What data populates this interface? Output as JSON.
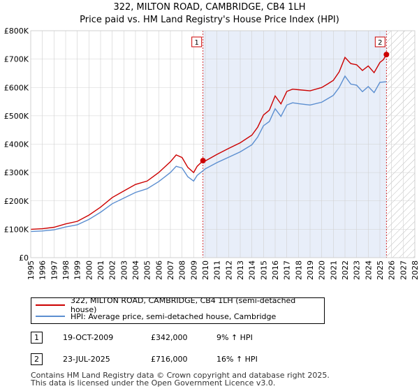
{
  "title_line1": "322, MILTON ROAD, CAMBRIDGE, CB4 1LH",
  "title_line2": "Price paid vs. HM Land Registry's House Price Index (HPI)",
  "colors": {
    "property": "#cc0000",
    "hpi": "#5b8ed0",
    "shade": "#e8eef9",
    "grid": "#d0d0d0"
  },
  "legend": {
    "property_label": "322, MILTON ROAD, CAMBRIDGE, CB4 1LH (semi-detached house)",
    "hpi_label": "HPI: Average price, semi-detached house, Cambridge"
  },
  "transactions": [
    {
      "num": "1",
      "date": "19-OCT-2009",
      "price": "£342,000",
      "hpi": "9% ↑ HPI"
    },
    {
      "num": "2",
      "date": "23-JUL-2025",
      "price": "£716,000",
      "hpi": "16% ↑ HPI"
    }
  ],
  "footer_line1": "Contains HM Land Registry data © Crown copyright and database right 2025.",
  "footer_line2": "This data is licensed under the Open Government Licence v3.0.",
  "chart_data": {
    "type": "line",
    "title": "322, MILTON ROAD, CAMBRIDGE, CB4 1LH",
    "subtitle": "Price paid vs. HM Land Registry's House Price Index (HPI)",
    "xlabel": "",
    "ylabel": "",
    "xlim": [
      1995,
      2028
    ],
    "ylim": [
      0,
      800000
    ],
    "x_ticks": [
      1995,
      1996,
      1997,
      1998,
      1999,
      2000,
      2001,
      2002,
      2003,
      2004,
      2005,
      2006,
      2007,
      2008,
      2009,
      2010,
      2011,
      2012,
      2013,
      2014,
      2015,
      2016,
      2017,
      2018,
      2019,
      2020,
      2021,
      2022,
      2023,
      2024,
      2025,
      2026,
      2027,
      2028
    ],
    "y_ticks": [
      {
        "value": 0,
        "label": "£0"
      },
      {
        "value": 100000,
        "label": "£100K"
      },
      {
        "value": 200000,
        "label": "£200K"
      },
      {
        "value": 300000,
        "label": "£300K"
      },
      {
        "value": 400000,
        "label": "£400K"
      },
      {
        "value": 500000,
        "label": "£500K"
      },
      {
        "value": 600000,
        "label": "£600K"
      },
      {
        "value": 700000,
        "label": "£700K"
      },
      {
        "value": 800000,
        "label": "£800K"
      }
    ],
    "grid": true,
    "shaded_range": [
      2009.8,
      2025.56
    ],
    "hatched_from": 2025.56,
    "series": [
      {
        "name": "322, MILTON ROAD, CAMBRIDGE, CB4 1LH (semi-detached house)",
        "x": [
          1995,
          1996,
          1997,
          1998,
          1999,
          2000,
          2001,
          2002,
          2003,
          2004,
          2005,
          2006,
          2007,
          2007.5,
          2008,
          2008.5,
          2009,
          2009.3,
          2009.8,
          2010,
          2011,
          2012,
          2013,
          2014,
          2014.5,
          2015,
          2015.5,
          2016,
          2016.5,
          2017,
          2017.5,
          2018,
          2019,
          2020,
          2020.5,
          2021,
          2021.5,
          2022,
          2022.5,
          2023,
          2023.5,
          2024,
          2024.5,
          2025,
          2025.3,
          2025.56
        ],
        "values": [
          100000,
          102000,
          107000,
          119000,
          128000,
          150000,
          178000,
          212000,
          235000,
          258000,
          270000,
          300000,
          338000,
          362000,
          353000,
          318000,
          300000,
          322000,
          342000,
          341000,
          364000,
          385000,
          405000,
          432000,
          460000,
          503000,
          520000,
          570000,
          542000,
          586000,
          594000,
          592000,
          588000,
          600000,
          612000,
          625000,
          655000,
          706000,
          684000,
          680000,
          660000,
          676000,
          652000,
          688000,
          698000,
          716000
        ]
      },
      {
        "name": "HPI: Average price, semi-detached house, Cambridge",
        "x": [
          1995,
          1996,
          1997,
          1998,
          1999,
          2000,
          2001,
          2002,
          2003,
          2004,
          2005,
          2006,
          2007,
          2007.5,
          2008,
          2008.5,
          2009,
          2009.3,
          2010,
          2011,
          2012,
          2013,
          2014,
          2014.5,
          2015,
          2015.5,
          2016,
          2016.5,
          2017,
          2017.5,
          2018,
          2019,
          2020,
          2020.5,
          2021,
          2021.5,
          2022,
          2022.5,
          2023,
          2023.5,
          2024,
          2024.5,
          2025,
          2025.56
        ],
        "values": [
          92000,
          94000,
          98000,
          108000,
          116000,
          135000,
          160000,
          190000,
          210000,
          230000,
          243000,
          268000,
          300000,
          322000,
          316000,
          285000,
          270000,
          290000,
          313000,
          335000,
          354000,
          373000,
          398000,
          425000,
          465000,
          480000,
          525000,
          498000,
          538000,
          546000,
          543000,
          538000,
          548000,
          560000,
          572000,
          600000,
          640000,
          612000,
          608000,
          585000,
          603000,
          582000,
          618000,
          620000
        ]
      }
    ],
    "markers": [
      {
        "label": "1",
        "x": 2009.8,
        "y": 342000
      },
      {
        "label": "2",
        "x": 2025.56,
        "y": 716000
      }
    ]
  }
}
